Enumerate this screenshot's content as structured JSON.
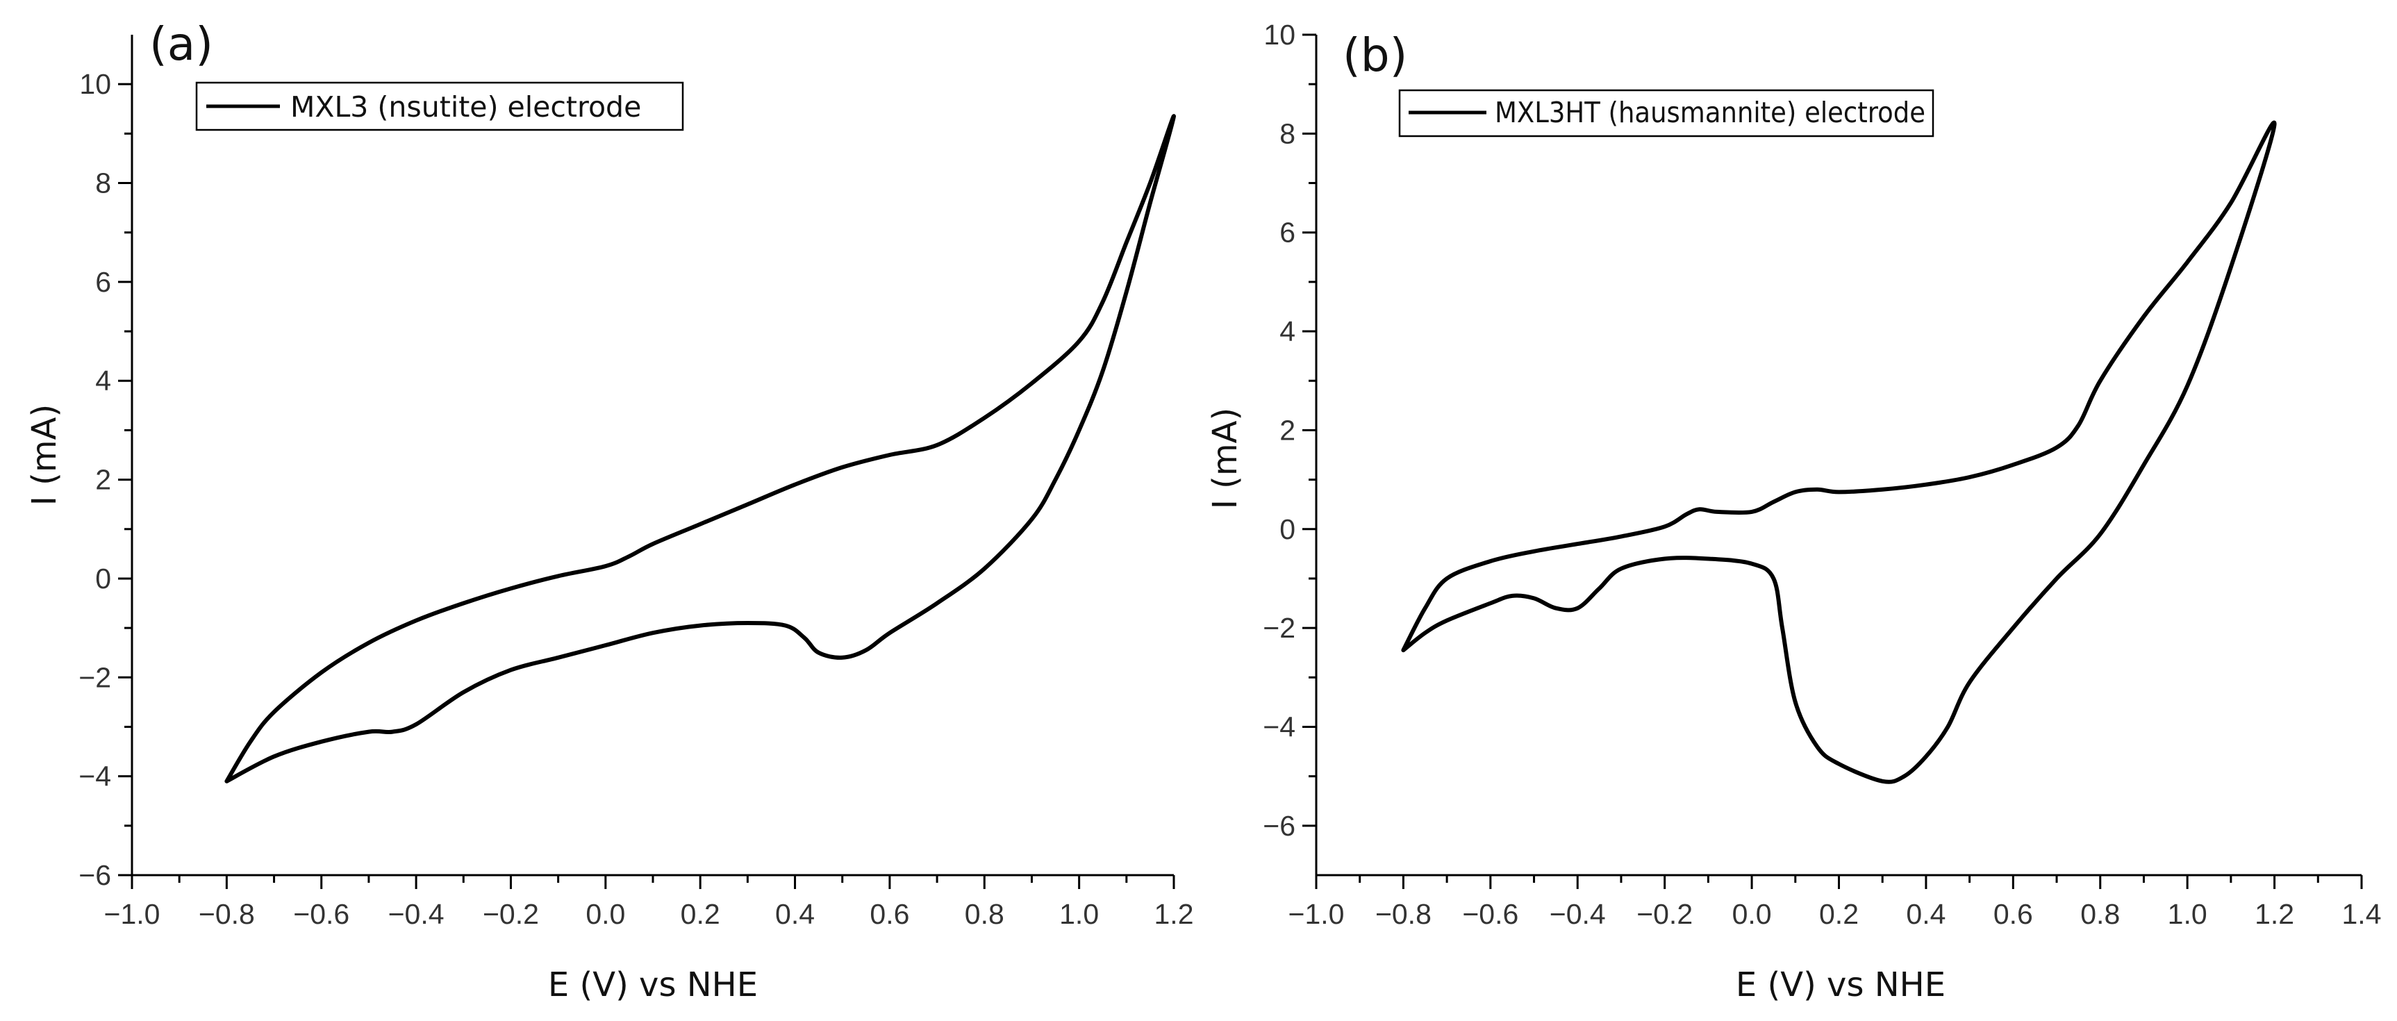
{
  "chart_data": [
    {
      "type": "line",
      "panel_label": "(a)",
      "title": "",
      "xlabel": "E (V) vs NHE",
      "ylabel": "I (mA)",
      "xlim": [
        -1.0,
        1.2
      ],
      "ylim": [
        -6,
        11
      ],
      "xticks": [
        -1.0,
        -0.8,
        -0.6,
        -0.4,
        -0.2,
        0.0,
        0.2,
        0.4,
        0.6,
        0.8,
        1.0,
        1.2
      ],
      "xtick_labels": [
        "−1.0",
        "−0.8",
        "−0.6",
        "−0.4",
        "−0.2",
        "0.0",
        "0.2",
        "0.4",
        "0.6",
        "0.8",
        "1.0",
        "1.2"
      ],
      "yticks": [
        -6,
        -4,
        -2,
        0,
        2,
        4,
        6,
        8,
        10
      ],
      "ytick_labels": [
        "−6",
        "−4",
        "−2",
        "0",
        "2",
        "4",
        "6",
        "8",
        "10"
      ],
      "legend_position": "top-left",
      "series": [
        {
          "name": "MXL3 (nsutite) electrode",
          "points": [
            [
              -0.8,
              -4.1
            ],
            [
              -0.75,
              -3.3
            ],
            [
              -0.7,
              -2.7
            ],
            [
              -0.6,
              -1.9
            ],
            [
              -0.5,
              -1.3
            ],
            [
              -0.4,
              -0.85
            ],
            [
              -0.3,
              -0.5
            ],
            [
              -0.2,
              -0.2
            ],
            [
              -0.1,
              0.05
            ],
            [
              0.0,
              0.25
            ],
            [
              0.05,
              0.45
            ],
            [
              0.1,
              0.7
            ],
            [
              0.2,
              1.1
            ],
            [
              0.3,
              1.5
            ],
            [
              0.4,
              1.9
            ],
            [
              0.5,
              2.25
            ],
            [
              0.6,
              2.5
            ],
            [
              0.7,
              2.7
            ],
            [
              0.8,
              3.25
            ],
            [
              0.9,
              3.95
            ],
            [
              1.0,
              4.8
            ],
            [
              1.05,
              5.6
            ],
            [
              1.1,
              6.8
            ],
            [
              1.15,
              8.0
            ],
            [
              1.2,
              9.35
            ],
            [
              1.15,
              7.6
            ],
            [
              1.1,
              5.8
            ],
            [
              1.05,
              4.2
            ],
            [
              1.0,
              3.0
            ],
            [
              0.95,
              2.0
            ],
            [
              0.9,
              1.2
            ],
            [
              0.8,
              0.2
            ],
            [
              0.7,
              -0.5
            ],
            [
              0.6,
              -1.1
            ],
            [
              0.55,
              -1.45
            ],
            [
              0.5,
              -1.6
            ],
            [
              0.45,
              -1.5
            ],
            [
              0.42,
              -1.2
            ],
            [
              0.38,
              -0.95
            ],
            [
              0.3,
              -0.9
            ],
            [
              0.2,
              -0.95
            ],
            [
              0.1,
              -1.1
            ],
            [
              0.0,
              -1.35
            ],
            [
              -0.1,
              -1.6
            ],
            [
              -0.2,
              -1.85
            ],
            [
              -0.3,
              -2.3
            ],
            [
              -0.4,
              -2.95
            ],
            [
              -0.45,
              -3.1
            ],
            [
              -0.5,
              -3.1
            ],
            [
              -0.6,
              -3.3
            ],
            [
              -0.7,
              -3.6
            ],
            [
              -0.8,
              -4.1
            ]
          ]
        }
      ]
    },
    {
      "type": "line",
      "panel_label": "(b)",
      "title": "",
      "xlabel": "E (V) vs NHE",
      "ylabel": "I (mA)",
      "xlim": [
        -1.0,
        1.4
      ],
      "ylim": [
        -7,
        10
      ],
      "xticks": [
        -1.0,
        -0.8,
        -0.6,
        -0.4,
        -0.2,
        0.0,
        0.2,
        0.4,
        0.6,
        0.8,
        1.0,
        1.2,
        1.4
      ],
      "xtick_labels": [
        "−1.0",
        "−0.8",
        "−0.6",
        "−0.4",
        "−0.2",
        "0.0",
        "0.2",
        "0.4",
        "0.6",
        "0.8",
        "1.0",
        "1.2",
        "1.4"
      ],
      "yticks": [
        -6,
        -4,
        -2,
        0,
        2,
        4,
        6,
        8,
        10
      ],
      "ytick_labels": [
        "−6",
        "−4",
        "−2",
        "0",
        "2",
        "4",
        "6",
        "8",
        "10"
      ],
      "legend_position": "top-left",
      "series": [
        {
          "name": "MXL3HT (hausmannite) electrode",
          "points": [
            [
              -0.8,
              -2.45
            ],
            [
              -0.75,
              -1.6
            ],
            [
              -0.7,
              -1.0
            ],
            [
              -0.6,
              -0.65
            ],
            [
              -0.5,
              -0.45
            ],
            [
              -0.4,
              -0.3
            ],
            [
              -0.3,
              -0.15
            ],
            [
              -0.2,
              0.05
            ],
            [
              -0.15,
              0.3
            ],
            [
              -0.12,
              0.4
            ],
            [
              -0.08,
              0.35
            ],
            [
              0.0,
              0.35
            ],
            [
              0.05,
              0.55
            ],
            [
              0.1,
              0.75
            ],
            [
              0.15,
              0.8
            ],
            [
              0.2,
              0.75
            ],
            [
              0.3,
              0.8
            ],
            [
              0.4,
              0.9
            ],
            [
              0.5,
              1.05
            ],
            [
              0.6,
              1.3
            ],
            [
              0.7,
              1.65
            ],
            [
              0.75,
              2.1
            ],
            [
              0.8,
              3.0
            ],
            [
              0.9,
              4.3
            ],
            [
              1.0,
              5.4
            ],
            [
              1.1,
              6.6
            ],
            [
              1.2,
              8.2
            ],
            [
              1.1,
              5.3
            ],
            [
              1.0,
              2.9
            ],
            [
              0.9,
              1.3
            ],
            [
              0.8,
              -0.1
            ],
            [
              0.7,
              -1.0
            ],
            [
              0.6,
              -2.0
            ],
            [
              0.5,
              -3.1
            ],
            [
              0.45,
              -4.0
            ],
            [
              0.4,
              -4.6
            ],
            [
              0.35,
              -5.0
            ],
            [
              0.3,
              -5.1
            ],
            [
              0.2,
              -4.75
            ],
            [
              0.15,
              -4.4
            ],
            [
              0.1,
              -3.5
            ],
            [
              0.07,
              -2.0
            ],
            [
              0.05,
              -1.0
            ],
            [
              0.0,
              -0.7
            ],
            [
              -0.1,
              -0.6
            ],
            [
              -0.2,
              -0.6
            ],
            [
              -0.3,
              -0.8
            ],
            [
              -0.35,
              -1.2
            ],
            [
              -0.4,
              -1.6
            ],
            [
              -0.45,
              -1.6
            ],
            [
              -0.5,
              -1.4
            ],
            [
              -0.55,
              -1.35
            ],
            [
              -0.6,
              -1.5
            ],
            [
              -0.7,
              -1.85
            ],
            [
              -0.75,
              -2.1
            ],
            [
              -0.8,
              -2.45
            ]
          ]
        }
      ]
    }
  ]
}
